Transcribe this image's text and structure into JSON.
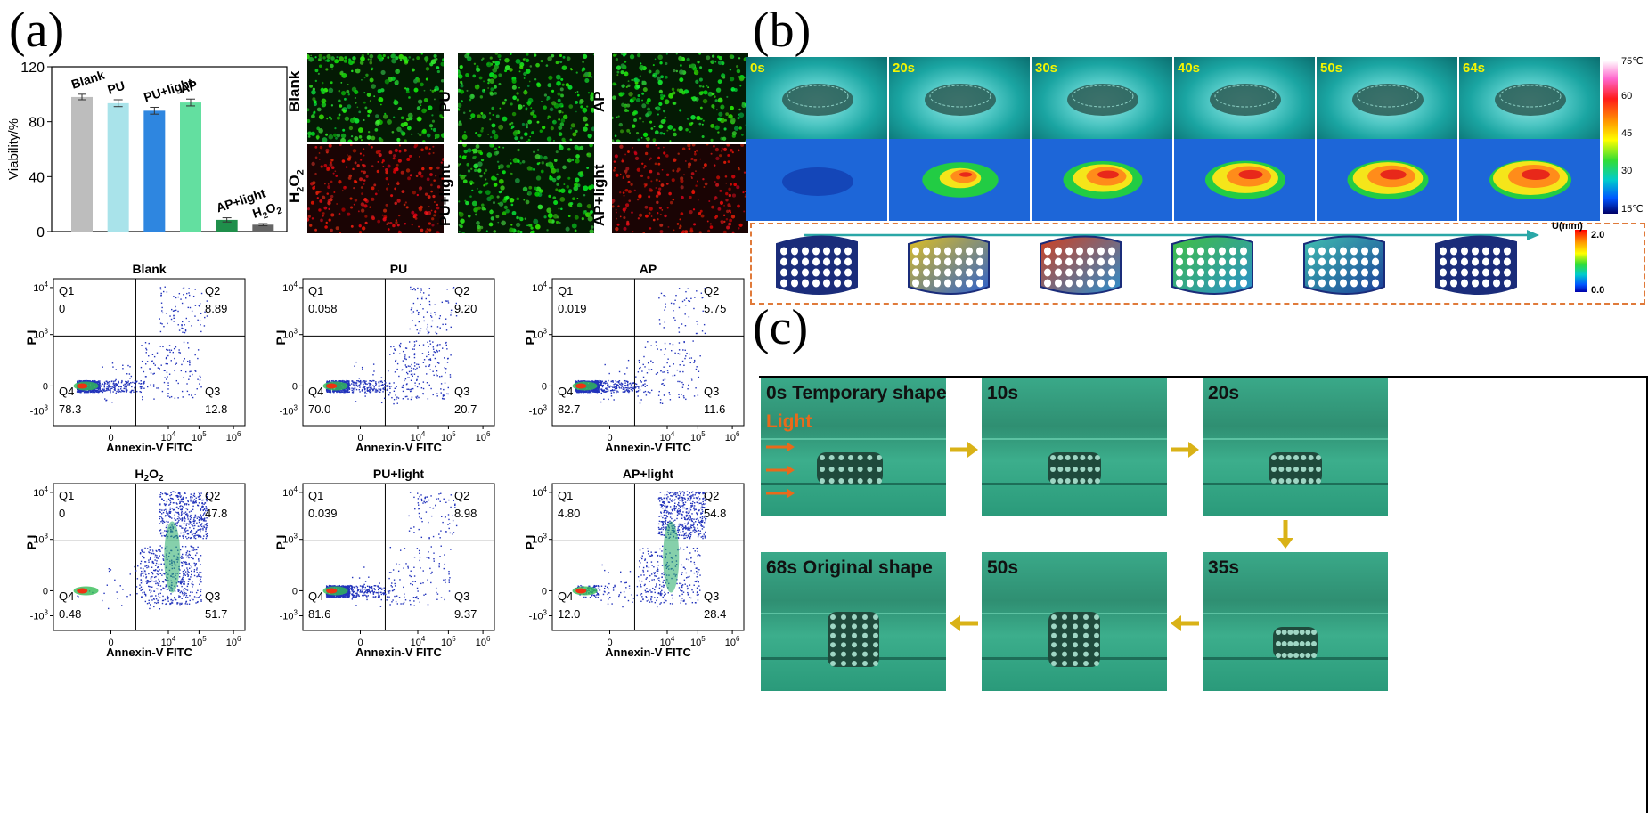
{
  "panels": {
    "a": "(a)",
    "b": "(b)",
    "c": "(c)"
  },
  "bar_chart": {
    "type": "bar",
    "ylabel": "Viability/%",
    "ylim": [
      0,
      120
    ],
    "yticks": [
      "0",
      "40",
      "80",
      "120"
    ],
    "categories": [
      "Blank",
      "PU",
      "PU+light",
      "AP",
      "AP+light",
      "H2O2"
    ],
    "values": [
      98,
      93.5,
      88,
      94,
      8.5,
      5
    ],
    "errors": [
      2,
      2.5,
      2.5,
      2.5,
      1.5,
      0.8
    ],
    "colors": [
      "#bdbdbd",
      "#a9e3ea",
      "#2e86e0",
      "#63dfa0",
      "#1f8f4b",
      "#666666"
    ]
  },
  "fluorescence": {
    "labels": [
      "Blank",
      "PU",
      "AP",
      "H2O2",
      "PU+light",
      "AP+light"
    ]
  },
  "flow": {
    "xlabel": "Annexin-V FITC",
    "ylabel": "P I",
    "yticks": [
      "-10",
      "0",
      "10",
      "10",
      "10"
    ],
    "xticks": [
      "0",
      "10",
      "10",
      "10"
    ],
    "plots": [
      {
        "title": "Blank",
        "q1": "0",
        "q2": "8.89",
        "q3": "12.8",
        "q4": "78.3"
      },
      {
        "title": "PU",
        "q1": "0.058",
        "q2": "9.20",
        "q3": "20.7",
        "q4": "70.0"
      },
      {
        "title": "AP",
        "q1": "0.019",
        "q2": "5.75",
        "q3": "11.6",
        "q4": "82.7"
      },
      {
        "title": "H2O2",
        "q1": "0",
        "q2": "47.8",
        "q3": "51.7",
        "q4": "0.48"
      },
      {
        "title": "PU+light",
        "q1": "0.039",
        "q2": "8.98",
        "q3": "9.37",
        "q4": "81.6"
      },
      {
        "title": "AP+light",
        "q1": "4.80",
        "q2": "54.8",
        "q3": "28.4",
        "q4": "12.0"
      }
    ]
  },
  "thermal": {
    "times": [
      "0s",
      "20s",
      "30s",
      "40s",
      "50s",
      "64s"
    ],
    "scale_ticks": [
      "75℃",
      "60",
      "45",
      "30",
      "15℃"
    ],
    "u_label": "U(mm)",
    "u_max": "2.0",
    "u_min": "0.0"
  },
  "recovery": {
    "cells": [
      "0s  Temporary shape",
      "10s",
      "20s",
      "68s   Original shape",
      "50s",
      "35s"
    ],
    "light_label": "Light"
  }
}
